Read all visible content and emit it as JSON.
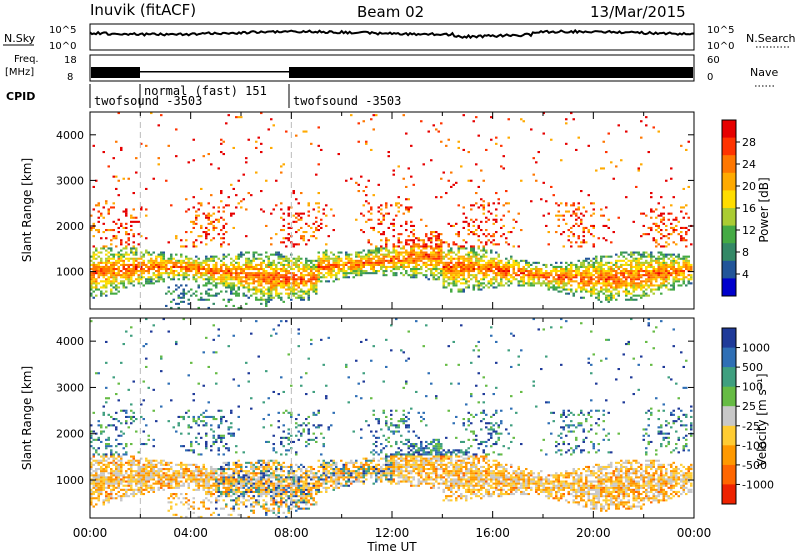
{
  "header": {
    "site": "Inuvik (fitACF)",
    "beam": "Beam 02",
    "date": "13/Mar/2015"
  },
  "noise_panel": {
    "left_label": "N.Sky",
    "right_label": "N.Search",
    "left_ticks": [
      "10^5",
      "10^0"
    ],
    "right_ticks": [
      "10^5",
      "10^0"
    ]
  },
  "freq_panel": {
    "left_label_1": "Freq.",
    "left_label_2": "[MHz]",
    "left_ticks": [
      "18",
      "8"
    ],
    "right_ticks": [
      "60",
      "0"
    ],
    "right_label": "Nave"
  },
  "cpid": {
    "label": "CPID",
    "segments": [
      {
        "text": "twofsound -3503",
        "start_hour": 0
      },
      {
        "text": "normal (fast) 151",
        "start_hour": 2
      },
      {
        "text": "twofsound -3503",
        "start_hour": 8
      }
    ]
  },
  "chart_data": [
    {
      "type": "heatmap",
      "panel": "power",
      "ylabel": "Slant Range [km]",
      "xlim": [
        0,
        24
      ],
      "ylim": [
        180,
        4500
      ],
      "yticks": [
        1000,
        2000,
        3000,
        4000
      ],
      "colorbar": {
        "label": "Power [dB]",
        "ticks": [
          "28",
          "24",
          "20",
          "16",
          "12",
          "8",
          "4"
        ],
        "colors": [
          "#e60000",
          "#ff3300",
          "#ff7700",
          "#ffaa00",
          "#ffdd00",
          "#aacc33",
          "#44aa44",
          "#338866",
          "#225599",
          "#0000cc"
        ]
      }
    },
    {
      "type": "heatmap",
      "panel": "velocity",
      "ylabel": "Slant Range [km]",
      "xlabel": "Time UT",
      "xlim": [
        0,
        24
      ],
      "ylim": [
        180,
        4500
      ],
      "yticks": [
        1000,
        2000,
        3000,
        4000
      ],
      "xticks": [
        "00:00",
        "04:00",
        "08:00",
        "12:00",
        "16:00",
        "20:00",
        "00:00"
      ],
      "colorbar": {
        "label": "Velocity [m s⁻¹]",
        "ticks": [
          "1000",
          "500",
          "100",
          "25",
          "-25",
          "-100",
          "-500",
          "-1000"
        ],
        "colors": [
          "#1f3a99",
          "#2f6fb5",
          "#3f9f7f",
          "#66bb44",
          "#c8c8c8",
          "#ffcc33",
          "#ff9900",
          "#ff6600",
          "#ee2200"
        ]
      }
    }
  ]
}
